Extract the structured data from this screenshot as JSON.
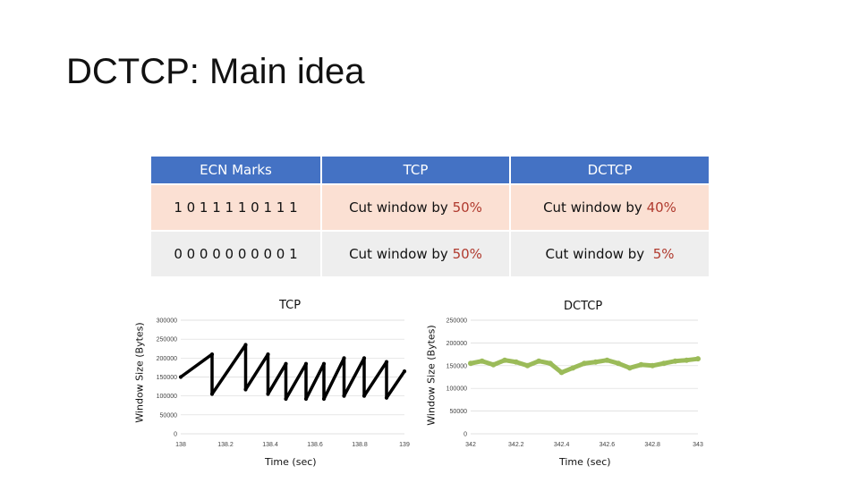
{
  "title": "DCTCP: Main idea",
  "table": {
    "headers": [
      "ECN Marks",
      "TCP",
      "DCTCP"
    ],
    "rows": [
      {
        "marks": "1 0 1 1 1 1 0 1 1 1",
        "tcp_prefix": "Cut window by ",
        "tcp_value": "50%",
        "dctcp_prefix": "Cut window by ",
        "dctcp_value": "40%"
      },
      {
        "marks": "0 0 0 0 0 0 0 0 0 1",
        "tcp_prefix": "Cut window by ",
        "tcp_value": "50%",
        "dctcp_prefix": "Cut window by  ",
        "dctcp_value": "5%"
      }
    ]
  },
  "colors": {
    "header": "#4472c4",
    "row1": "#fbe0d3",
    "row2": "#eeeeee",
    "highlight": "#b03a2e",
    "tcp_line": "#000000",
    "dctcp_line": "#9bbb59"
  },
  "chart_data": [
    {
      "type": "line",
      "title": "TCP",
      "xlabel": "Time (sec)",
      "ylabel": "Window Size (Bytes)",
      "xlim": [
        138,
        139
      ],
      "ylim": [
        0,
        300000
      ],
      "xticks": [
        "138",
        "138.2",
        "138.4",
        "138.6",
        "138.8",
        "139"
      ],
      "yticks": [
        "0",
        "50000",
        "100000",
        "150000",
        "200000",
        "250000",
        "300000"
      ],
      "grid": true,
      "series": [
        {
          "x": [
            138.0,
            138.14,
            138.14,
            138.29,
            138.29,
            138.39,
            138.39,
            138.47,
            138.47,
            138.56,
            138.56,
            138.64,
            138.64,
            138.73,
            138.73,
            138.82,
            138.82,
            138.92,
            138.92,
            139.0
          ],
          "y": [
            150000,
            210000,
            105000,
            235000,
            117000,
            210000,
            105000,
            185000,
            92000,
            185000,
            92000,
            185000,
            92000,
            200000,
            100000,
            200000,
            100000,
            190000,
            95000,
            165000
          ]
        }
      ]
    },
    {
      "type": "line",
      "title": "DCTCP",
      "xlabel": "Time (sec)",
      "ylabel": "Window Size (Bytes)",
      "xlim": [
        342,
        343
      ],
      "ylim": [
        0,
        250000
      ],
      "xticks": [
        "342",
        "342.2",
        "342.4",
        "342.6",
        "342.8",
        "343"
      ],
      "yticks": [
        "0",
        "50000",
        "100000",
        "150000",
        "200000",
        "250000"
      ],
      "grid": true,
      "series": [
        {
          "x": [
            342.0,
            342.05,
            342.1,
            342.15,
            342.2,
            342.25,
            342.3,
            342.35,
            342.4,
            342.45,
            342.5,
            342.55,
            342.6,
            342.65,
            342.7,
            342.75,
            342.8,
            342.85,
            342.9,
            342.95,
            343.0
          ],
          "y": [
            155000,
            160000,
            152000,
            162000,
            158000,
            150000,
            160000,
            155000,
            135000,
            145000,
            155000,
            158000,
            162000,
            155000,
            145000,
            152000,
            150000,
            155000,
            160000,
            162000,
            165000
          ]
        }
      ]
    }
  ]
}
